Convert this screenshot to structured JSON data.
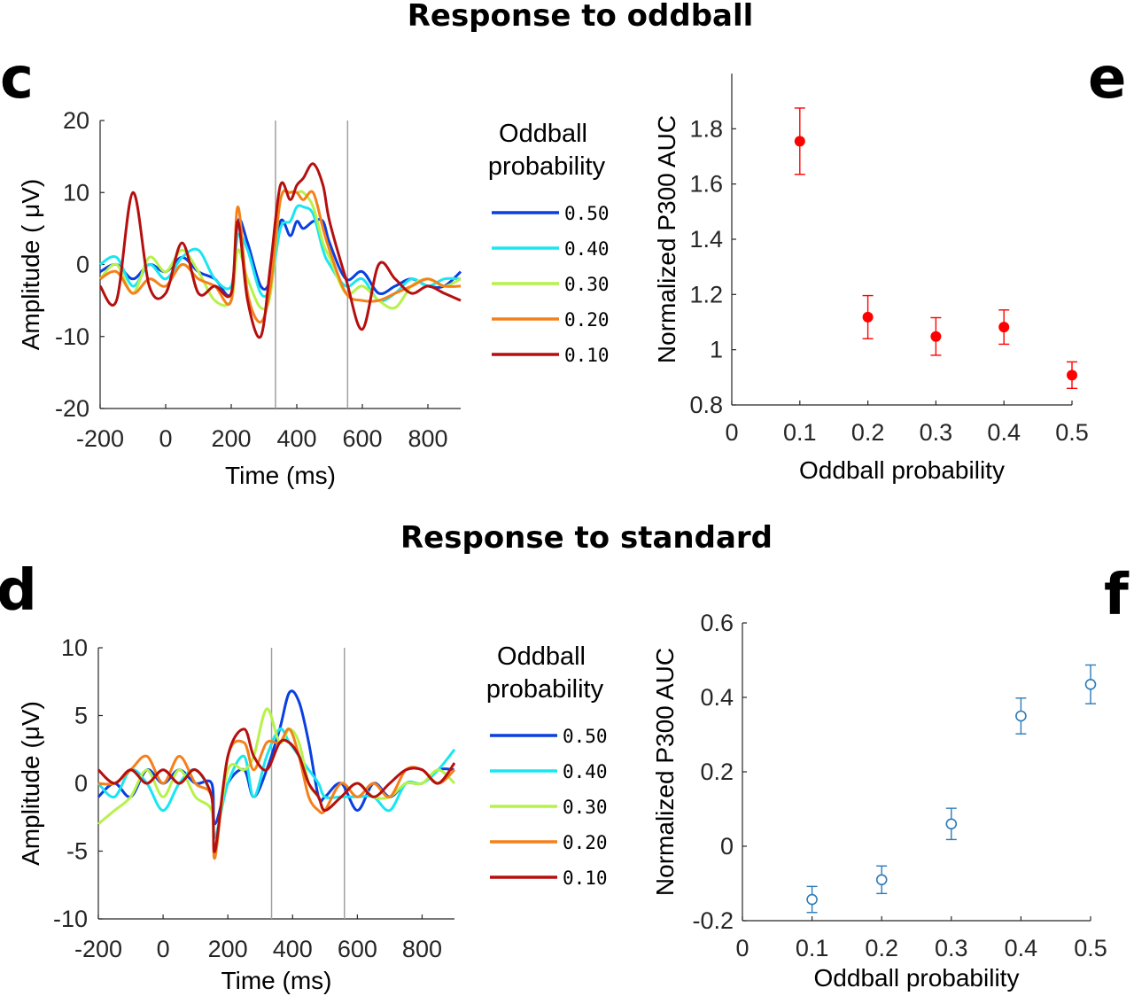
{
  "titles": {
    "oddball": "Response to oddball",
    "standard": "Response to standard"
  },
  "panels": {
    "c": "c",
    "d": "d",
    "e": "e",
    "f": "f"
  },
  "colors": {
    "p050": "#0a3fe0",
    "p040": "#19e6f0",
    "p030": "#b7f24a",
    "p020": "#f5801a",
    "p010": "#b50f0f",
    "scatter_e": "#ff0000",
    "scatter_f": "#2b7bb9",
    "marker_lines": "#a0a0a0"
  },
  "chart_data": [
    {
      "id": "c",
      "type": "line",
      "title": "",
      "xlabel": "Time (ms)",
      "ylabel": "Amplitude ( μV)",
      "xlim": [
        -200,
        900
      ],
      "ylim": [
        -20,
        20
      ],
      "xticks": [
        -200,
        0,
        200,
        400,
        600,
        800
      ],
      "yticks": [
        -20,
        -10,
        0,
        10,
        20
      ],
      "vlines": [
        335,
        555
      ],
      "legend_title": [
        "Oddball",
        "probability"
      ],
      "legend_position": "right",
      "x": [
        -200,
        -150,
        -100,
        -50,
        0,
        50,
        100,
        150,
        200,
        220,
        250,
        290,
        320,
        350,
        380,
        400,
        420,
        450,
        480,
        500,
        550,
        600,
        650,
        700,
        750,
        800,
        850,
        900
      ],
      "series": [
        {
          "name": "0.50",
          "values": [
            -1,
            0,
            -2,
            0,
            -1,
            1,
            -1,
            -2,
            -4,
            6,
            3,
            -3,
            -2,
            6,
            4,
            6,
            5,
            6,
            6,
            3,
            -2,
            -1,
            -4,
            -3,
            -2,
            -3,
            -3,
            -1
          ]
        },
        {
          "name": "0.40",
          "values": [
            0,
            1,
            -3,
            0,
            -2,
            1,
            2,
            -2,
            -3,
            4,
            2,
            -4,
            -3,
            5,
            6,
            8,
            8,
            7,
            2,
            0,
            -3,
            -2,
            -5,
            -4,
            -2,
            -3,
            -2,
            -2
          ]
        },
        {
          "name": "0.30",
          "values": [
            -2,
            0,
            -4,
            1,
            -1,
            2,
            -1,
            -5,
            -5,
            2,
            -2,
            -6,
            -4,
            9,
            10,
            10,
            10,
            8,
            3,
            1,
            -4,
            -3,
            -5,
            -6,
            -3,
            -2,
            -3,
            -2
          ]
        },
        {
          "name": "0.20",
          "values": [
            -2,
            -1,
            -4,
            -2,
            -3,
            0,
            -2,
            -3,
            -5,
            8,
            -4,
            -8,
            -3,
            9,
            10,
            10,
            9,
            10,
            5,
            2,
            -4,
            -5,
            -5,
            -4,
            -3,
            -2,
            -3,
            -3
          ]
        },
        {
          "name": "0.10",
          "values": [
            -3,
            -5,
            10,
            -3,
            -4,
            3,
            -4,
            -3,
            -4,
            6,
            -5,
            -10,
            0,
            11,
            9,
            11,
            12,
            14,
            11,
            6,
            -2,
            -9,
            0,
            -2,
            -4,
            -3,
            -4,
            -5
          ]
        }
      ]
    },
    {
      "id": "e",
      "type": "scatter",
      "title": "",
      "xlabel": "Oddball probability",
      "ylabel": "Normalized P300 AUC",
      "xlim": [
        0,
        0.5
      ],
      "ylim": [
        0.8,
        2.0
      ],
      "xticks": [
        0,
        0.1,
        0.2,
        0.3,
        0.4,
        0.5
      ],
      "yticks": [
        0.8,
        1,
        1.2,
        1.4,
        1.6,
        1.8
      ],
      "ytick_labels": [
        "0.8",
        "1",
        "1.2",
        "1.4",
        "1.6",
        "1.8"
      ],
      "marker": "filled-circle",
      "x": [
        0.1,
        0.2,
        0.3,
        0.4,
        0.5
      ],
      "y": [
        1.755,
        1.118,
        1.048,
        1.082,
        0.908
      ],
      "yerr": [
        0.12,
        0.078,
        0.068,
        0.062,
        0.048
      ]
    },
    {
      "id": "d",
      "type": "line",
      "title": "",
      "xlabel": "Time (ms)",
      "ylabel": "Amplitude (μV)",
      "xlim": [
        -200,
        900
      ],
      "ylim": [
        -10,
        10
      ],
      "xticks": [
        -200,
        0,
        200,
        400,
        600,
        800
      ],
      "yticks": [
        -10,
        -5,
        0,
        5,
        10
      ],
      "vlines": [
        335,
        560
      ],
      "legend_title": [
        "Oddball",
        "probability"
      ],
      "legend_position": "right",
      "x": [
        -200,
        -150,
        -100,
        -50,
        0,
        50,
        100,
        150,
        160,
        200,
        250,
        280,
        320,
        360,
        390,
        420,
        450,
        480,
        500,
        550,
        600,
        650,
        700,
        750,
        800,
        850,
        900
      ],
      "series": [
        {
          "name": "0.50",
          "values": [
            -1,
            0,
            -1,
            1,
            0,
            1,
            0,
            0,
            -3,
            0,
            1,
            -1,
            1,
            4,
            6.7,
            6,
            3,
            -1,
            -1,
            0,
            -2,
            0,
            -1,
            0,
            0,
            1,
            1
          ]
        },
        {
          "name": "0.40",
          "values": [
            0,
            -1,
            1,
            0,
            -2,
            0,
            1,
            -1,
            -4,
            0,
            2,
            -1,
            2,
            4,
            3,
            2,
            1,
            0,
            -1,
            -1,
            -1,
            -1,
            -2,
            0,
            0,
            1,
            2.5
          ]
        },
        {
          "name": "0.30",
          "values": [
            -3,
            -2,
            -1,
            1,
            -1,
            1,
            -1,
            -2,
            -5,
            1,
            1,
            2,
            5.5,
            3,
            4,
            3,
            0,
            -1,
            -2,
            -1,
            0,
            -1,
            -1,
            0,
            0,
            1,
            0
          ]
        },
        {
          "name": "0.20",
          "values": [
            0,
            0,
            1,
            2,
            0,
            2,
            0,
            -1,
            -5.5,
            2,
            3,
            1,
            3,
            3,
            4,
            2,
            -1,
            -2,
            -2,
            0,
            -1,
            0,
            -1,
            1,
            1,
            0,
            1
          ]
        },
        {
          "name": "0.10",
          "values": [
            1,
            0,
            1,
            0,
            1,
            0,
            1,
            -1,
            -5,
            2,
            4,
            2,
            1,
            3,
            3,
            2,
            0,
            -1,
            -2,
            -1,
            0,
            -1,
            0,
            1,
            1,
            0,
            1.5
          ]
        }
      ]
    },
    {
      "id": "f",
      "type": "scatter",
      "title": "",
      "xlabel": "Oddball probability",
      "ylabel": "Normalized P300 AUC",
      "xlim": [
        0,
        0.5
      ],
      "ylim": [
        -0.2,
        0.6
      ],
      "xticks": [
        0,
        0.1,
        0.2,
        0.3,
        0.4,
        0.5
      ],
      "yticks": [
        -0.2,
        0,
        0.2,
        0.4,
        0.6
      ],
      "marker": "open-circle",
      "x": [
        0.1,
        0.2,
        0.3,
        0.4,
        0.5
      ],
      "y": [
        -0.143,
        -0.09,
        0.06,
        0.35,
        0.435
      ],
      "yerr": [
        0.035,
        0.037,
        0.042,
        0.048,
        0.052
      ]
    }
  ]
}
